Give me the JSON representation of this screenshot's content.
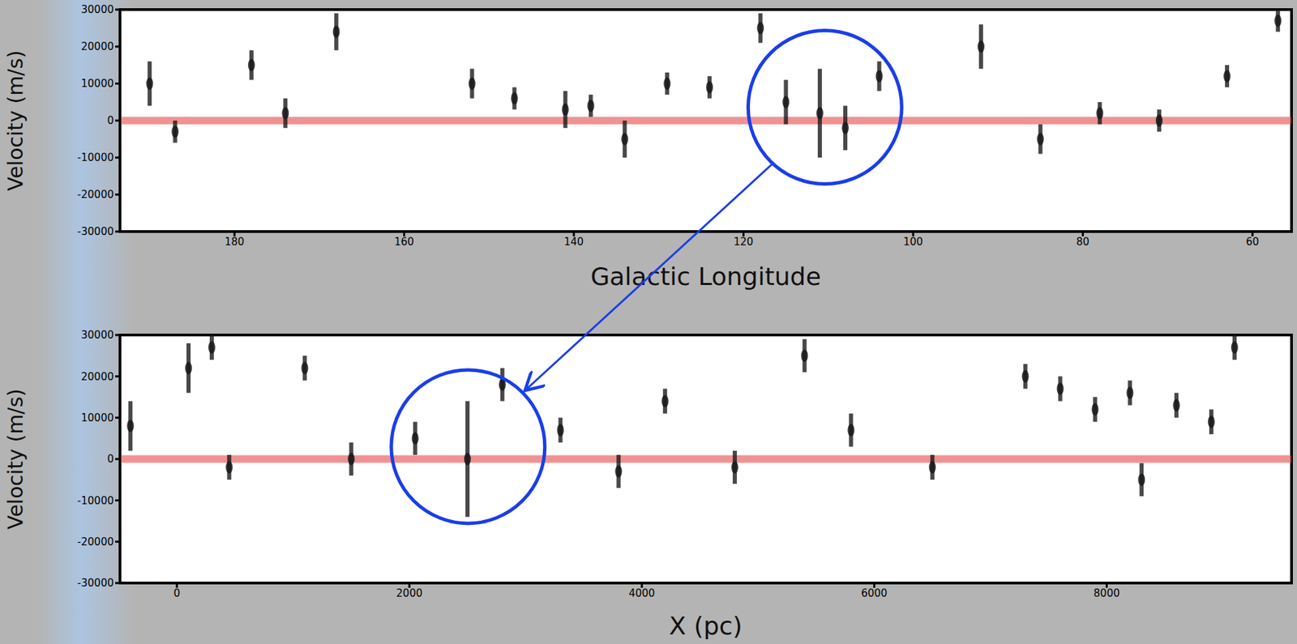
{
  "chart_data": [
    {
      "type": "scatter",
      "xlabel": "Galactic Longitude",
      "ylabel": "Velocity (m/s)",
      "xlim": [
        193.5,
        55.4
      ],
      "xticks": [
        180,
        160,
        140,
        120,
        100,
        80,
        60
      ],
      "ylim": [
        -30000,
        30000
      ],
      "yticks": [
        -30000,
        -20000,
        -10000,
        0,
        10000,
        20000,
        30000
      ],
      "grid": true,
      "color": "#1a1a1a",
      "hline": 0,
      "highlight": {
        "x": 110.4,
        "y": 3600,
        "color": "#1a3ee8"
      },
      "x": [
        190,
        187,
        178,
        174,
        168,
        152,
        147,
        141,
        138,
        134,
        129,
        124,
        118,
        115,
        111,
        108,
        104,
        92,
        85,
        78,
        71,
        63,
        57
      ],
      "values": [
        10000,
        -3000,
        15000,
        2000,
        24000,
        10000,
        6000,
        3000,
        4000,
        -5000,
        10000,
        9000,
        25000,
        5000,
        2000,
        -2000,
        12000,
        20000,
        -5000,
        2000,
        0,
        12000,
        27000
      ],
      "errors": [
        6000,
        3000,
        4000,
        4000,
        5000,
        4000,
        3000,
        5000,
        3000,
        5000,
        3000,
        3000,
        4000,
        6000,
        12000,
        6000,
        4000,
        6000,
        4000,
        3000,
        3000,
        3000,
        3000
      ]
    },
    {
      "type": "scatter",
      "xlabel": "X (pc)",
      "ylabel": "Velocity (m/s)",
      "xlim": [
        -490,
        9590
      ],
      "xticks": [
        0,
        2000,
        4000,
        6000,
        8000
      ],
      "ylim": [
        -30000,
        30000
      ],
      "yticks": [
        -30000,
        -20000,
        -10000,
        0,
        10000,
        20000,
        30000
      ],
      "grid": true,
      "color": "#1a1a1a",
      "hline": 0,
      "highlight": {
        "x": 2505,
        "y": 3000,
        "color": "#1a3ee8"
      },
      "x": [
        -400,
        100,
        300,
        450,
        1100,
        1500,
        2050,
        2500,
        2800,
        3300,
        3800,
        4200,
        4800,
        5400,
        5800,
        6500,
        7300,
        7600,
        7900,
        8200,
        8600,
        8900,
        8300,
        9100
      ],
      "values": [
        8000,
        22000,
        27000,
        -2000,
        22000,
        0,
        5000,
        0,
        18000,
        7000,
        -3000,
        14000,
        -2000,
        25000,
        7000,
        -2000,
        20000,
        17000,
        12000,
        16000,
        13000,
        9000,
        -5000,
        27000
      ],
      "errors": [
        6000,
        6000,
        3000,
        3000,
        3000,
        4000,
        4000,
        14000,
        4000,
        3000,
        4000,
        3000,
        4000,
        4000,
        4000,
        3000,
        3000,
        3000,
        3000,
        3000,
        3000,
        3000,
        4000,
        3000
      ]
    }
  ]
}
